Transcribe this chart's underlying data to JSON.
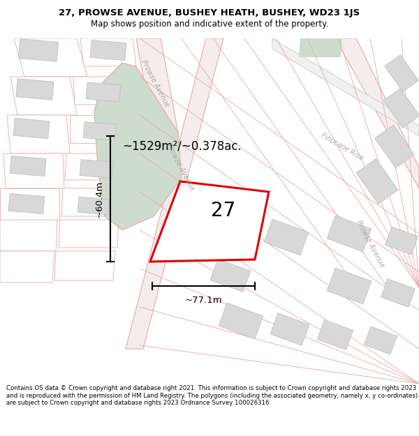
{
  "title": "27, PROWSE AVENUE, BUSHEY HEATH, BUSHEY, WD23 1JS",
  "subtitle": "Map shows position and indicative extent of the property.",
  "footer": "Contains OS data © Crown copyright and database right 2021. This information is subject to Crown copyright and database rights 2023 and is reproduced with the permission of HM Land Registry. The polygons (including the associated geometry, namely x, y co-ordinates) are subject to Crown copyright and database rights 2023 Ordnance Survey 100026316.",
  "area_text": "~1529m²/~0.378ac.",
  "number_text": "27",
  "dim_h_label": "~60.4m",
  "dim_w_label": "~77.1m",
  "road_color": "#e8a8a8",
  "plot_border_color": "#dd0000",
  "green_color": "#cddccd",
  "building_color": "#d8d8d8",
  "building_edge": "#bbbbbb",
  "road_label_color": "#aaaaaa",
  "map_bg": "#ffffff"
}
